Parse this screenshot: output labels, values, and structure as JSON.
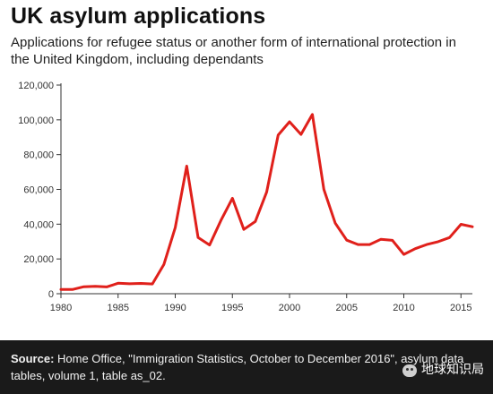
{
  "title": "UK asylum applications",
  "subtitle": "Applications for refugee status or another form of international protection in the United Kingdom, including dependants",
  "footer": {
    "source_label": "Source:",
    "source_text": " Home Office, \"Immigration Statistics, October to December 2016\", asylum data tables, volume 1, table as_02."
  },
  "watermark": {
    "text": "地球知识局",
    "icon": "wechat-icon"
  },
  "colors": {
    "line": "#e0201b",
    "axis": "#333333",
    "footer_bg": "#1a1a1a"
  },
  "chart_data": {
    "type": "line",
    "title": "UK asylum applications",
    "xlabel": "",
    "ylabel": "",
    "xlim": [
      1980,
      2016
    ],
    "ylim": [
      0,
      120000
    ],
    "x_ticks": [
      1980,
      1985,
      1990,
      1995,
      2000,
      2005,
      2010,
      2015
    ],
    "x_tick_labels": [
      "1980",
      "1985",
      "1990",
      "1995",
      "2000",
      "2005",
      "2010",
      "2015"
    ],
    "y_ticks": [
      0,
      20000,
      40000,
      60000,
      80000,
      100000,
      120000
    ],
    "y_tick_labels": [
      "0",
      "20,000",
      "40,000",
      "60,000",
      "80,000",
      "100,000",
      "120,000"
    ],
    "grid": false,
    "series": [
      {
        "x": [
          1980,
          1981,
          1982,
          1983,
          1984,
          1985,
          1986,
          1987,
          1988,
          1989,
          1990,
          1991,
          1992,
          1993,
          1994,
          1995,
          1996,
          1997,
          1998,
          1999,
          2000,
          2001,
          2002,
          2003,
          2004,
          2005,
          2006,
          2007,
          2008,
          2009,
          2010,
          2011,
          2012,
          2013,
          2014,
          2015,
          2016
        ],
        "values": [
          2400,
          2400,
          4000,
          4300,
          3900,
          6000,
          5700,
          5900,
          5600,
          16800,
          38000,
          73400,
          32300,
          28000,
          42200,
          54900,
          37000,
          41500,
          58500,
          91200,
          98900,
          91600,
          103100,
          60000,
          40600,
          30800,
          28300,
          28300,
          31300,
          30700,
          22600,
          25900,
          28300,
          29900,
          32300,
          39900,
          38500
        ]
      }
    ]
  }
}
